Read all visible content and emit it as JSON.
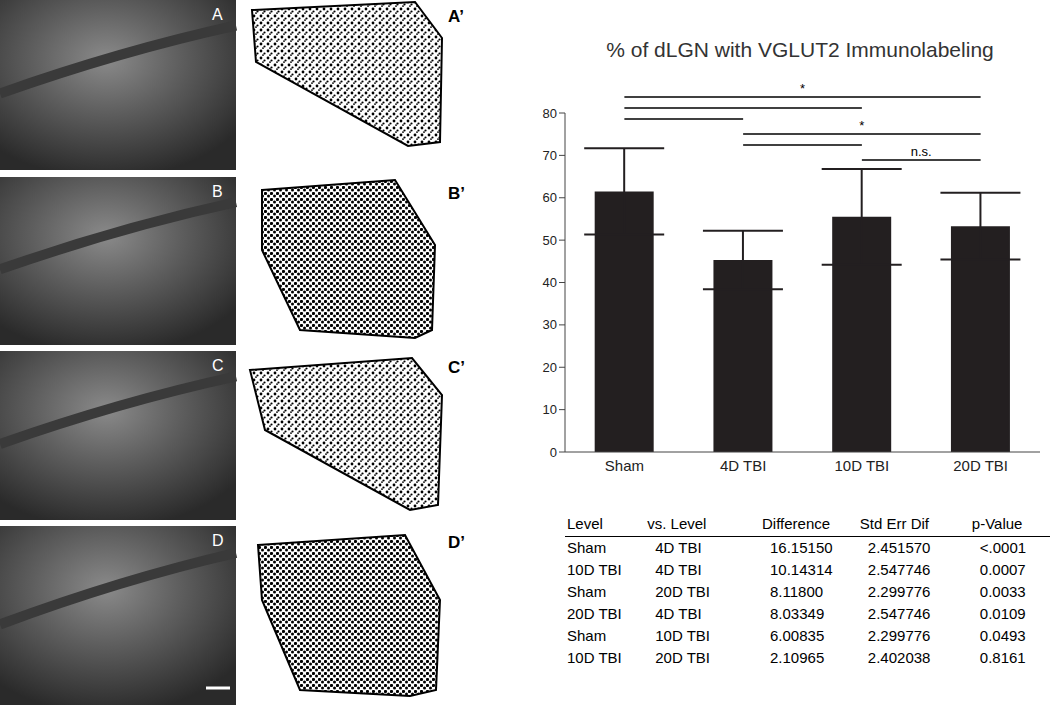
{
  "chart_data": {
    "type": "bar",
    "title": "% of dLGN with VGLUT2 Immunolabeling",
    "categories": [
      "Sham",
      "4D TBI",
      "10D TBI",
      "20D TBI"
    ],
    "values": [
      61.5,
      45.3,
      55.5,
      53.3
    ],
    "errors": [
      10.2,
      6.9,
      11.3,
      7.9
    ],
    "color": "#231f20",
    "ylim": [
      0,
      80
    ],
    "yticks": [
      0,
      10,
      20,
      30,
      40,
      50,
      60,
      70,
      80
    ],
    "grid": false,
    "significance": [
      {
        "pairs": [
          [
            "Sham",
            "4D TBI"
          ],
          [
            "Sham",
            "10D TBI"
          ],
          [
            "Sham",
            "20D TBI"
          ]
        ],
        "label": "*"
      },
      {
        "pairs": [
          [
            "4D TBI",
            "10D TBI"
          ],
          [
            "4D TBI",
            "20D TBI"
          ]
        ],
        "label": "*"
      },
      {
        "pairs": [
          [
            "10D TBI",
            "20D TBI"
          ]
        ],
        "label": "n.s."
      }
    ]
  },
  "table": {
    "header": [
      "Level",
      "vs. Level",
      "Difference",
      "Std Err Dif",
      "p-Value"
    ],
    "rows": [
      [
        "Sham",
        "4D TBI",
        "16.15150",
        "2.451570",
        "<.0001"
      ],
      [
        "10D TBI",
        "4D TBI",
        "10.14314",
        "2.547746",
        "0.0007"
      ],
      [
        "Sham",
        "20D TBI",
        "8.11800",
        "2.299776",
        "0.0033"
      ],
      [
        "20D TBI",
        "4D TBI",
        "8.03349",
        "2.547746",
        "0.0109"
      ],
      [
        "Sham",
        "10D TBI",
        "6.00835",
        "2.299776",
        "0.0493"
      ],
      [
        "10D TBI",
        "20D TBI",
        "2.10965",
        "2.402038",
        "0.8161"
      ]
    ]
  },
  "panels": {
    "images": [
      "A",
      "B",
      "C",
      "D"
    ],
    "thresholded": [
      "A’",
      "B’",
      "C’",
      "D’"
    ]
  }
}
